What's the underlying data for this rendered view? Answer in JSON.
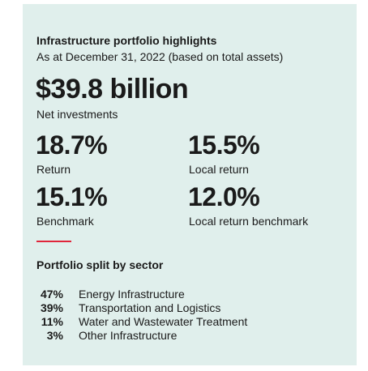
{
  "header": {
    "title": "Infrastructure portfolio highlights",
    "subtitle": "As at December 31, 2022 (based on total assets)"
  },
  "headline": {
    "value": "$39.8 billion",
    "label": "Net investments"
  },
  "metrics": [
    {
      "value": "18.7%",
      "label": "Return"
    },
    {
      "value": "15.5%",
      "label": "Local return"
    },
    {
      "value": "15.1%",
      "label": "Benchmark"
    },
    {
      "value": "12.0%",
      "label": "Local return benchmark"
    }
  ],
  "split": {
    "title": "Portfolio split by sector",
    "rows": [
      {
        "share": "47%",
        "sector": "Energy Infrastructure"
      },
      {
        "share": "39%",
        "sector": "Transportation and Logistics"
      },
      {
        "share": "11%",
        "sector": "Water and Wastewater Treatment"
      },
      {
        "share": "3%",
        "sector": "Other Infrastructure"
      }
    ]
  }
}
